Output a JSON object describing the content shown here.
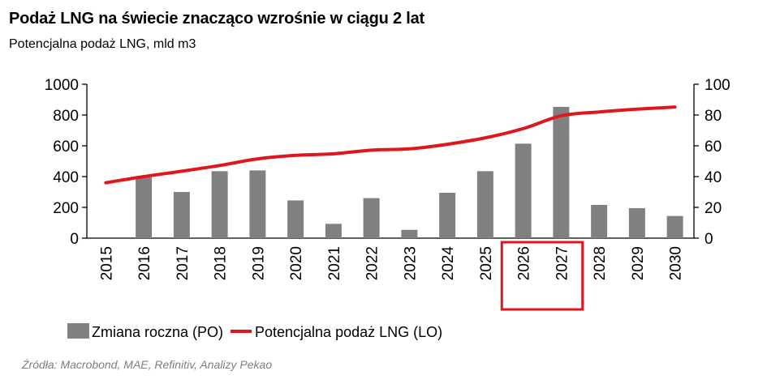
{
  "chart_data": {
    "type": "bar+line",
    "title": "Podaż LNG na świecie znacząco wzrośnie w ciągu 2 lat",
    "subtitle": "Potencjalna podaż LNG, mld m3",
    "categories": [
      "2015",
      "2016",
      "2017",
      "2018",
      "2019",
      "2020",
      "2021",
      "2022",
      "2023",
      "2024",
      "2025",
      "2026",
      "2027",
      "2028",
      "2029",
      "2030"
    ],
    "highlighted_categories": [
      "2026",
      "2027"
    ],
    "left_axis": {
      "range": [
        0,
        1000
      ],
      "ticks": [
        0,
        200,
        400,
        600,
        800,
        1000
      ]
    },
    "right_axis": {
      "range": [
        0,
        100
      ],
      "ticks": [
        0,
        20,
        40,
        60,
        80,
        100
      ]
    },
    "series": [
      {
        "name": "Zmiana roczna (PO)",
        "type": "bar",
        "axis": "right",
        "color": "#808080",
        "values": [
          null,
          39.5,
          30,
          43.5,
          44,
          24.5,
          9.3,
          26,
          5.4,
          29.5,
          43.5,
          61.4,
          85.3,
          21.6,
          19.5,
          14.4
        ]
      },
      {
        "name": "Potencjalna podaż LNG (LO)",
        "type": "line",
        "axis": "left",
        "color": "#e0161e",
        "values": [
          360,
          400,
          435,
          472,
          515,
          538,
          548,
          572,
          580,
          610,
          652,
          712,
          795,
          820,
          838,
          852
        ]
      }
    ],
    "legend": "bottom",
    "grid": false,
    "source": "Źródła: Macrobond, MAE, Refinitiv, Analizy Pekao"
  }
}
